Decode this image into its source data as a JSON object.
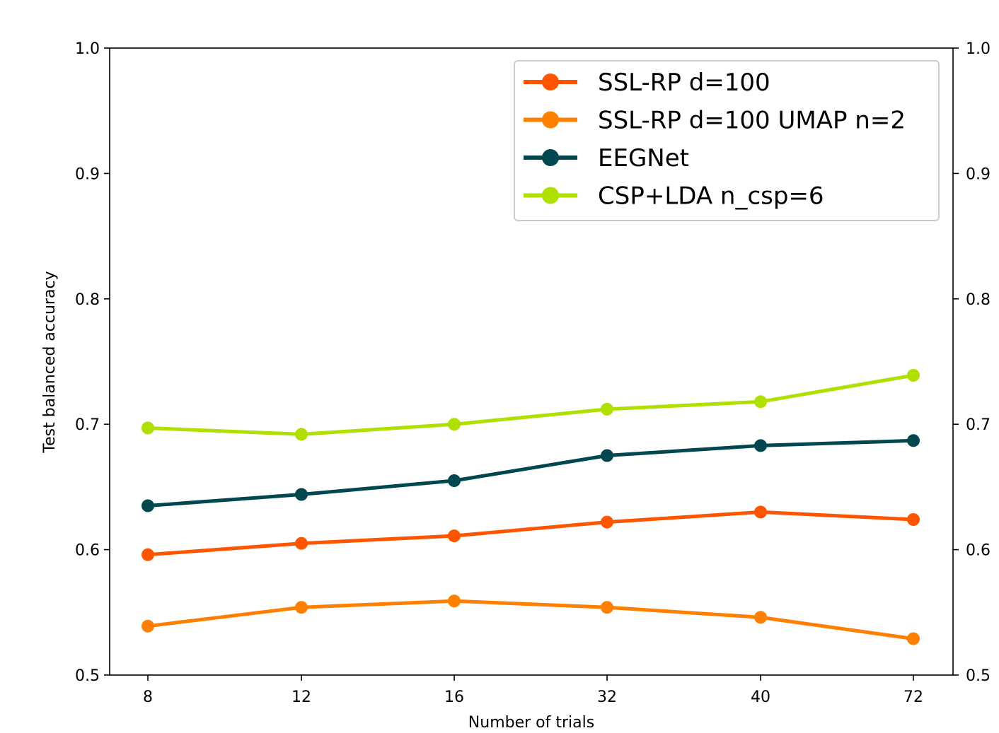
{
  "chart_data": {
    "type": "line",
    "title": "",
    "xlabel": "Number of trials",
    "ylabel": "Test balanced accuracy",
    "categories": [
      "8",
      "12",
      "16",
      "32",
      "40",
      "72"
    ],
    "ylim": [
      0.5,
      1.0
    ],
    "y_ticks": [
      "0.5",
      "0.6",
      "0.7",
      "0.8",
      "0.9",
      "1.0"
    ],
    "right_y_ticks": [
      "0.5",
      "0.6",
      "0.7",
      "0.8",
      "0.9",
      "1.0"
    ],
    "grid": false,
    "legend_position": "top-right",
    "series": [
      {
        "name": "SSL-RP d=100",
        "color": "#ff5500",
        "values": [
          0.596,
          0.605,
          0.611,
          0.622,
          0.63,
          0.624
        ]
      },
      {
        "name": "SSL-RP d=100 UMAP n=2",
        "color": "#ff8000",
        "values": [
          0.539,
          0.554,
          0.559,
          0.554,
          0.546,
          0.529
        ]
      },
      {
        "name": "EEGNet",
        "color": "#00474f",
        "values": [
          0.635,
          0.644,
          0.655,
          0.675,
          0.683,
          0.687
        ]
      },
      {
        "name": "CSP+LDA n_csp=6",
        "color": "#b0e000",
        "values": [
          0.697,
          0.692,
          0.7,
          0.712,
          0.718,
          0.739
        ]
      }
    ]
  }
}
